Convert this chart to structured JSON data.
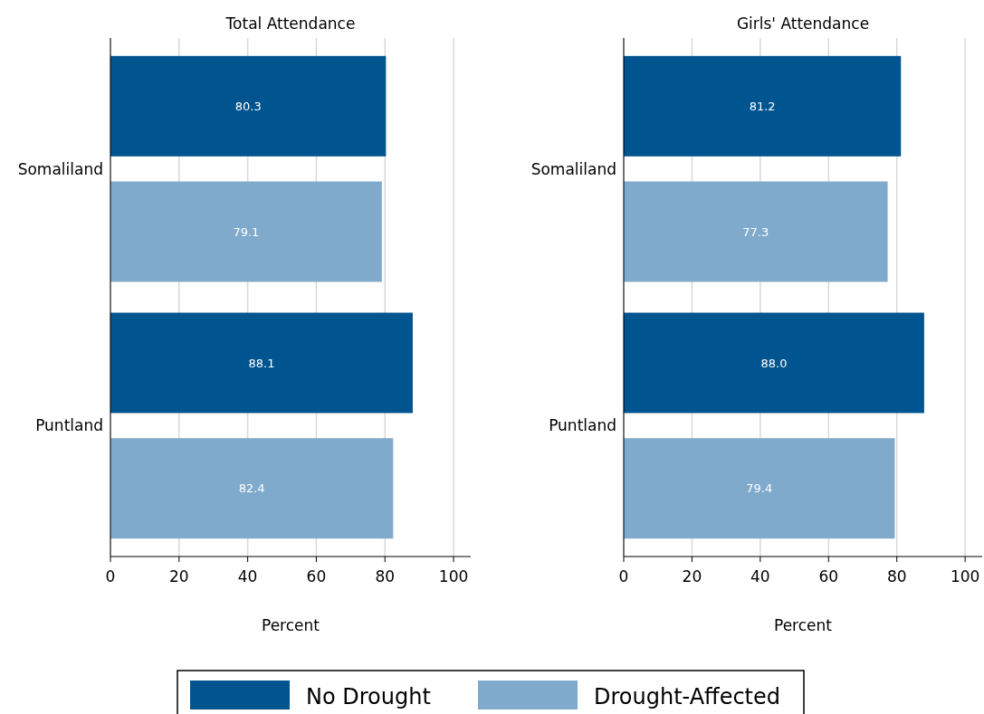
{
  "chart_data": [
    {
      "type": "bar",
      "orientation": "horizontal",
      "title": "Total Attendance",
      "xlabel": "Percent",
      "categories": [
        "Somaliland",
        "Puntland"
      ],
      "series": [
        {
          "name": "No Drought",
          "color": "#00548f",
          "values": [
            80.3,
            88.1
          ],
          "value_labels": [
            "80.3",
            "88.1"
          ]
        },
        {
          "name": "Drought-Affected",
          "color": "#80aacc",
          "values": [
            79.1,
            82.4
          ],
          "value_labels": [
            "79.1",
            "82.4"
          ]
        }
      ],
      "xlim": [
        0,
        105
      ],
      "xticks": [
        0,
        20,
        40,
        60,
        80,
        100
      ],
      "grid": "x",
      "legend": "bottom"
    },
    {
      "type": "bar",
      "orientation": "horizontal",
      "title": "Girls' Attendance",
      "xlabel": "Percent",
      "categories": [
        "Somaliland",
        "Puntland"
      ],
      "series": [
        {
          "color": "#00548f",
          "values": [
            81.2,
            88.0
          ],
          "value_labels": [
            "81.2",
            "88.0"
          ]
        },
        {
          "color": "#80aacc",
          "values": [
            77.3,
            79.4
          ],
          "value_labels": [
            "77.3",
            "79.4"
          ]
        }
      ],
      "xlim": [
        0,
        105
      ],
      "xticks": [
        0,
        20,
        40,
        60,
        80,
        100
      ],
      "grid": "x"
    }
  ]
}
